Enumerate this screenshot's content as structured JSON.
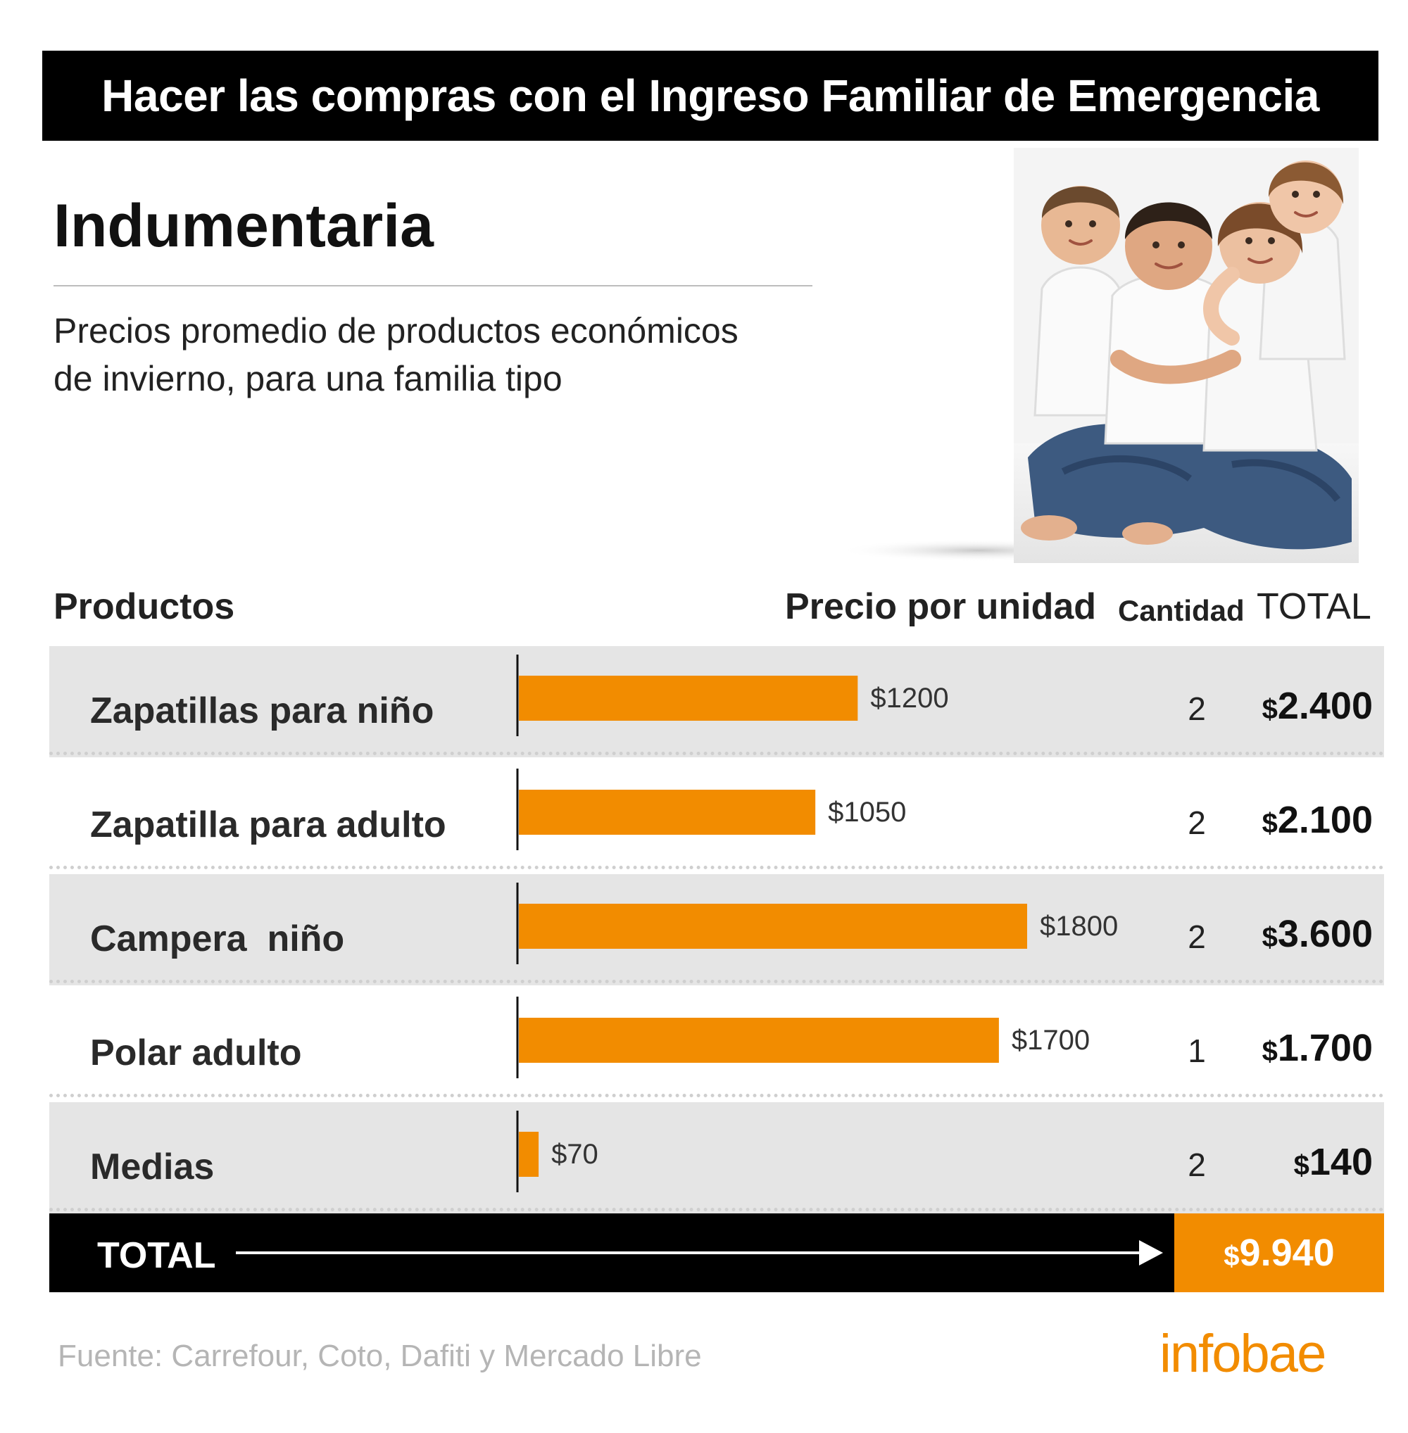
{
  "header": {
    "title": "Hacer las compras con el Ingreso Familiar de Emergencia"
  },
  "section_title": "Indumentaria",
  "subtitle_lines": [
    "Precios promedio de productos económicos",
    "de invierno, para una familia tipo"
  ],
  "columns": {
    "products": "Productos",
    "price": "Precio por unidad",
    "quantity": "Cantidad",
    "total": "TOTAL"
  },
  "rows": [
    {
      "product": "Zapatillas para niño",
      "price_label": "$1200",
      "qty": "2",
      "total": "2.400"
    },
    {
      "product": "Zapatilla para adulto",
      "price_label": "$1050",
      "qty": "2",
      "total": "2.100"
    },
    {
      "product": "Campera  niño",
      "price_label": "$1800",
      "qty": "2",
      "total": "3.600"
    },
    {
      "product": "Polar adulto",
      "price_label": "$1700",
      "qty": "1",
      "total": "1.700"
    },
    {
      "product": "Medias",
      "price_label": "$70",
      "qty": "2",
      "total": "140"
    }
  ],
  "currency_symbol": "$",
  "footer_total": {
    "label": "TOTAL",
    "value": "9.940"
  },
  "source": "Fuente: Carrefour, Coto, Dafiti y Mercado Libre",
  "logo": "infobae",
  "colors": {
    "accent": "#f28c00",
    "row_shade": "#e5e5e5",
    "header_bg": "#000000"
  },
  "chart_data": {
    "type": "bar",
    "orientation": "horizontal",
    "categories": [
      "Zapatillas para niño",
      "Zapatilla para adulto",
      "Campera  niño",
      "Polar adulto",
      "Medias"
    ],
    "values": [
      1200,
      1050,
      1800,
      1700,
      70
    ],
    "value_labels": [
      "$1200",
      "$1050",
      "$1800",
      "$1700",
      "$70"
    ],
    "title": "Indumentaria",
    "xlabel": "Precio por unidad",
    "ylabel": "Productos",
    "xlim": [
      0,
      1800
    ],
    "grid": false,
    "legend": "none",
    "quantities": [
      2,
      2,
      2,
      1,
      2
    ],
    "totals": [
      2400,
      2100,
      3600,
      1700,
      140
    ],
    "grand_total": 9940
  }
}
